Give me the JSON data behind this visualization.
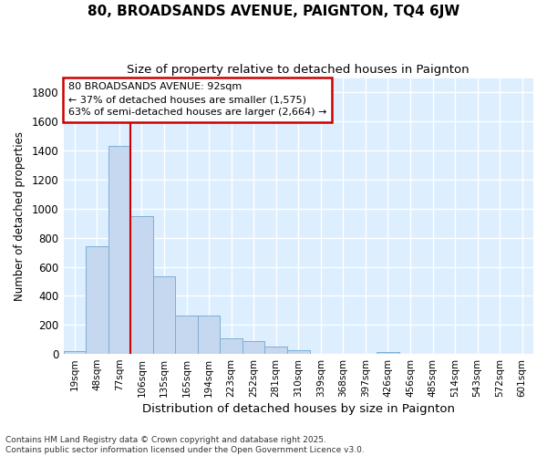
{
  "title": "80, BROADSANDS AVENUE, PAIGNTON, TQ4 6JW",
  "subtitle": "Size of property relative to detached houses in Paignton",
  "xlabel": "Distribution of detached houses by size in Paignton",
  "ylabel": "Number of detached properties",
  "categories": [
    "19sqm",
    "48sqm",
    "77sqm",
    "106sqm",
    "135sqm",
    "165sqm",
    "194sqm",
    "223sqm",
    "252sqm",
    "281sqm",
    "310sqm",
    "339sqm",
    "368sqm",
    "397sqm",
    "426sqm",
    "456sqm",
    "485sqm",
    "514sqm",
    "543sqm",
    "572sqm",
    "601sqm"
  ],
  "values": [
    20,
    740,
    1435,
    950,
    535,
    265,
    265,
    105,
    90,
    50,
    25,
    0,
    0,
    0,
    15,
    0,
    0,
    0,
    0,
    0,
    0
  ],
  "bar_color": "#c5d8f0",
  "bar_edge_color": "#7bafd4",
  "background_color": "#ddeeff",
  "grid_color": "#ffffff",
  "annotation_box_color": "#ffffff",
  "annotation_box_edge": "#cc0000",
  "vline_color": "#cc0000",
  "annotation_text_line1": "80 BROADSANDS AVENUE: 92sqm",
  "annotation_text_line2": "← 37% of detached houses are smaller (1,575)",
  "annotation_text_line3": "63% of semi-detached houses are larger (2,664) →",
  "footer_line1": "Contains HM Land Registry data © Crown copyright and database right 2025.",
  "footer_line2": "Contains public sector information licensed under the Open Government Licence v3.0.",
  "ylim": [
    0,
    1900
  ],
  "yticks": [
    0,
    200,
    400,
    600,
    800,
    1000,
    1200,
    1400,
    1600,
    1800
  ],
  "fig_bg": "#ffffff",
  "vline_pos": 2.5
}
